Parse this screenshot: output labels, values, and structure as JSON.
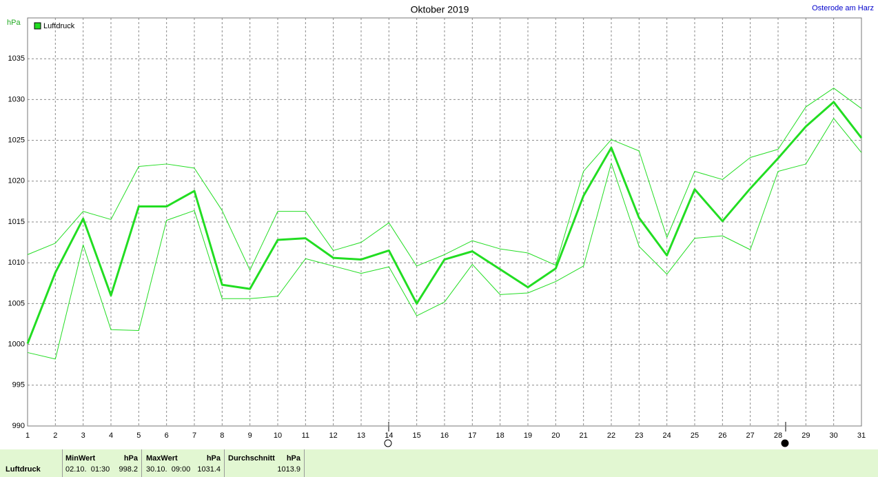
{
  "chart_data": {
    "type": "line",
    "title": "Oktober 2019",
    "station": "Osterode am Harz",
    "y_label": "hPa",
    "categories": [
      "1",
      "2",
      "3",
      "4",
      "5",
      "6",
      "7",
      "8",
      "9",
      "10",
      "11",
      "12",
      "13",
      "14",
      "15",
      "16",
      "17",
      "18",
      "19",
      "20",
      "21",
      "22",
      "23",
      "24",
      "25",
      "26",
      "27",
      "28",
      "29",
      "30",
      "31"
    ],
    "series": [
      {
        "name": "Luftdruck",
        "color": "#22dd22",
        "values": [
          1000.1,
          1008.8,
          1015.4,
          1006.0,
          1016.9,
          1016.9,
          1018.8,
          1007.3,
          1006.8,
          1012.8,
          1013.0,
          1010.6,
          1010.4,
          1011.5,
          1005.0,
          1010.4,
          1011.4,
          1009.2,
          1007.0,
          1009.3,
          1018.2,
          1024.1,
          1015.5,
          1010.9,
          1019.0,
          1015.1,
          1019.1,
          1022.8,
          1026.7,
          1029.7,
          1025.3
        ],
        "high": [
          1011.0,
          1012.4,
          1016.3,
          1015.3,
          1021.8,
          1022.1,
          1021.6,
          1016.4,
          1009.1,
          1016.3,
          1016.3,
          1011.5,
          1012.5,
          1014.9,
          1009.6,
          1011.0,
          1012.7,
          1011.7,
          1011.2,
          1009.7,
          1021.2,
          1025.1,
          1023.7,
          1013.1,
          1021.2,
          1020.2,
          1022.9,
          1023.9,
          1029.1,
          1031.4,
          1028.9
        ],
        "low": [
          999.0,
          998.2,
          1012.2,
          1001.8,
          1001.7,
          1015.2,
          1016.4,
          1005.6,
          1005.6,
          1005.9,
          1010.5,
          1009.6,
          1008.7,
          1009.5,
          1003.5,
          1005.2,
          1009.8,
          1006.1,
          1006.3,
          1007.7,
          1009.6,
          1022.2,
          1012.0,
          1008.6,
          1013.0,
          1013.3,
          1011.6,
          1021.2,
          1022.1,
          1027.7,
          1023.5
        ]
      }
    ],
    "ylim": [
      990,
      1040
    ],
    "yticks": [
      990,
      995,
      1000,
      1005,
      1010,
      1015,
      1020,
      1025,
      1030,
      1035
    ],
    "grid": true
  },
  "footer": {
    "label": "Luftdruck",
    "columns": [
      {
        "title": "MinWert",
        "unit": "hPa",
        "time": "02.10.  01:30",
        "value": "998.2"
      },
      {
        "title": "MaxWert",
        "unit": "hPa",
        "time": "30.10.  09:00",
        "value": "1031.4"
      },
      {
        "title": "Durchschnitt",
        "unit": "hPa",
        "value": "1013.9"
      }
    ]
  }
}
